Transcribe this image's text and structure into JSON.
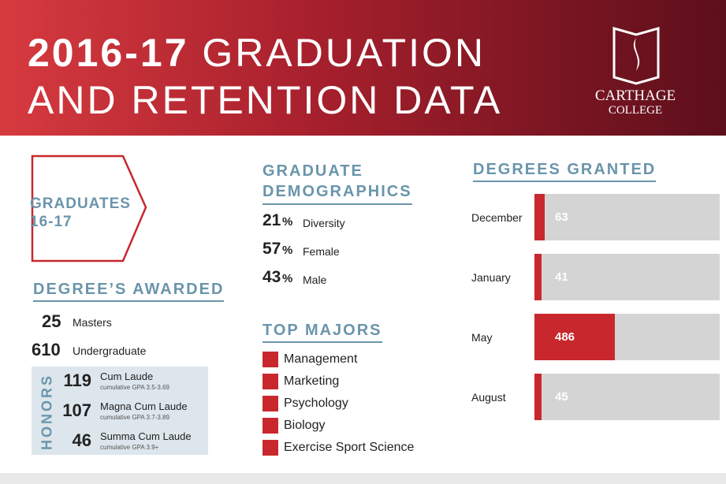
{
  "header": {
    "title_bold": "2016-17",
    "title_rest": "GRADUATION",
    "title_line2": "AND RETENTION DATA",
    "logo_line1": "CARTHAGE",
    "logo_line2": "COLLEGE"
  },
  "graduates": {
    "label_line1": "GRADUATES",
    "label_line2": "16-17"
  },
  "degrees_awarded": {
    "title": "DEGREE’S AWARDED",
    "rows": [
      {
        "count": 25,
        "label": "Masters"
      },
      {
        "count": 610,
        "label": "Undergraduate"
      }
    ]
  },
  "honors": {
    "title": "HONORS",
    "rows": [
      {
        "count": 119,
        "label": "Cum Laude",
        "note": "cumulative GPA 3.5-3.69"
      },
      {
        "count": 107,
        "label": "Magna Cum Laude",
        "note": "cumulative GPA 3.7-3.89"
      },
      {
        "count": 46,
        "label": "Summa Cum Laude",
        "note": "cumulative GPA 3.9+"
      }
    ]
  },
  "demographics": {
    "title_line1": "GRADUATE",
    "title_line2": "DEMOGRAPHICS",
    "rows": [
      {
        "value": 21,
        "unit": "%",
        "label": "Diversity"
      },
      {
        "value": 57,
        "unit": "%",
        "label": "Female"
      },
      {
        "value": 43,
        "unit": "%",
        "label": "Male"
      }
    ]
  },
  "top_majors": {
    "title": "TOP MAJORS",
    "items": [
      "Management",
      "Marketing",
      "Psychology",
      "Biology",
      "Exercise Sport Science"
    ]
  },
  "degrees_granted": {
    "title": "DEGREES GRANTED",
    "categories": [
      "December",
      "January",
      "May",
      "August"
    ],
    "values": [
      63,
      41,
      486,
      45
    ],
    "color": "#c8282d"
  }
}
